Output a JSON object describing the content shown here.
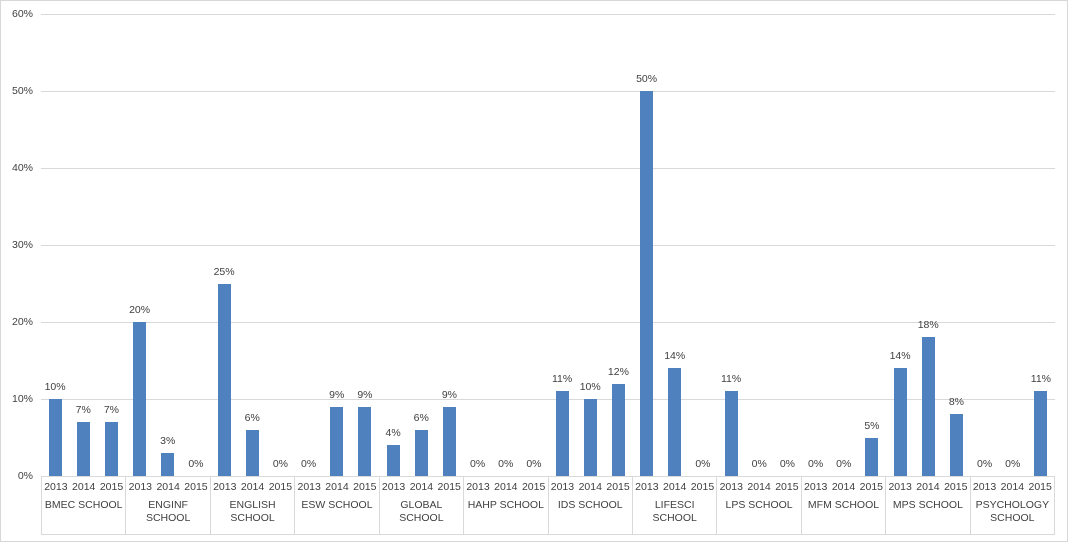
{
  "chart_data": {
    "type": "bar",
    "title": "",
    "xlabel": "",
    "ylabel": "",
    "ylim": [
      0,
      60
    ],
    "ystep": 10,
    "ytick_labels": [
      "60%",
      "50%",
      "40%",
      "30%",
      "20%",
      "10%",
      "0%"
    ],
    "grid": true,
    "legend": false,
    "bar_color": "#4e81bd",
    "gridline_color": "#d9d9d9",
    "text_color": "#404040",
    "years": [
      "2013",
      "2014",
      "2015"
    ],
    "groups": [
      {
        "school": "BMEC SCHOOL",
        "values": [
          10,
          7,
          7
        ],
        "labels": [
          "10%",
          "7%",
          "7%"
        ]
      },
      {
        "school": "ENGINF SCHOOL",
        "values": [
          20,
          3,
          0
        ],
        "labels": [
          "20%",
          "3%",
          "0%"
        ]
      },
      {
        "school": "ENGLISH SCHOOL",
        "values": [
          25,
          6,
          0
        ],
        "labels": [
          "25%",
          "6%",
          "0%"
        ]
      },
      {
        "school": "ESW SCHOOL",
        "values": [
          0,
          9,
          9
        ],
        "labels": [
          "0%",
          "9%",
          "9%"
        ]
      },
      {
        "school": "GLOBAL SCHOOL",
        "values": [
          4,
          6,
          9
        ],
        "labels": [
          "4%",
          "6%",
          "9%"
        ]
      },
      {
        "school": "HAHP SCHOOL",
        "values": [
          0,
          0,
          0
        ],
        "labels": [
          "0%",
          "0%",
          "0%"
        ]
      },
      {
        "school": "IDS SCHOOL",
        "values": [
          11,
          10,
          12
        ],
        "labels": [
          "11%",
          "10%",
          "12%"
        ]
      },
      {
        "school": "LIFESCI SCHOOL",
        "values": [
          50,
          14,
          0
        ],
        "labels": [
          "50%",
          "14%",
          "0%"
        ]
      },
      {
        "school": "LPS SCHOOL",
        "values": [
          11,
          0,
          0
        ],
        "labels": [
          "11%",
          "0%",
          "0%"
        ]
      },
      {
        "school": "MFM SCHOOL",
        "values": [
          0,
          0,
          5
        ],
        "labels": [
          "0%",
          "0%",
          "5%"
        ]
      },
      {
        "school": "MPS SCHOOL",
        "values": [
          14,
          18,
          8
        ],
        "labels": [
          "14%",
          "18%",
          "8%"
        ]
      },
      {
        "school": "PSYCHOLOGY SCHOOL",
        "values": [
          0,
          0,
          11
        ],
        "labels": [
          "0%",
          "0%",
          "11%"
        ]
      }
    ]
  }
}
